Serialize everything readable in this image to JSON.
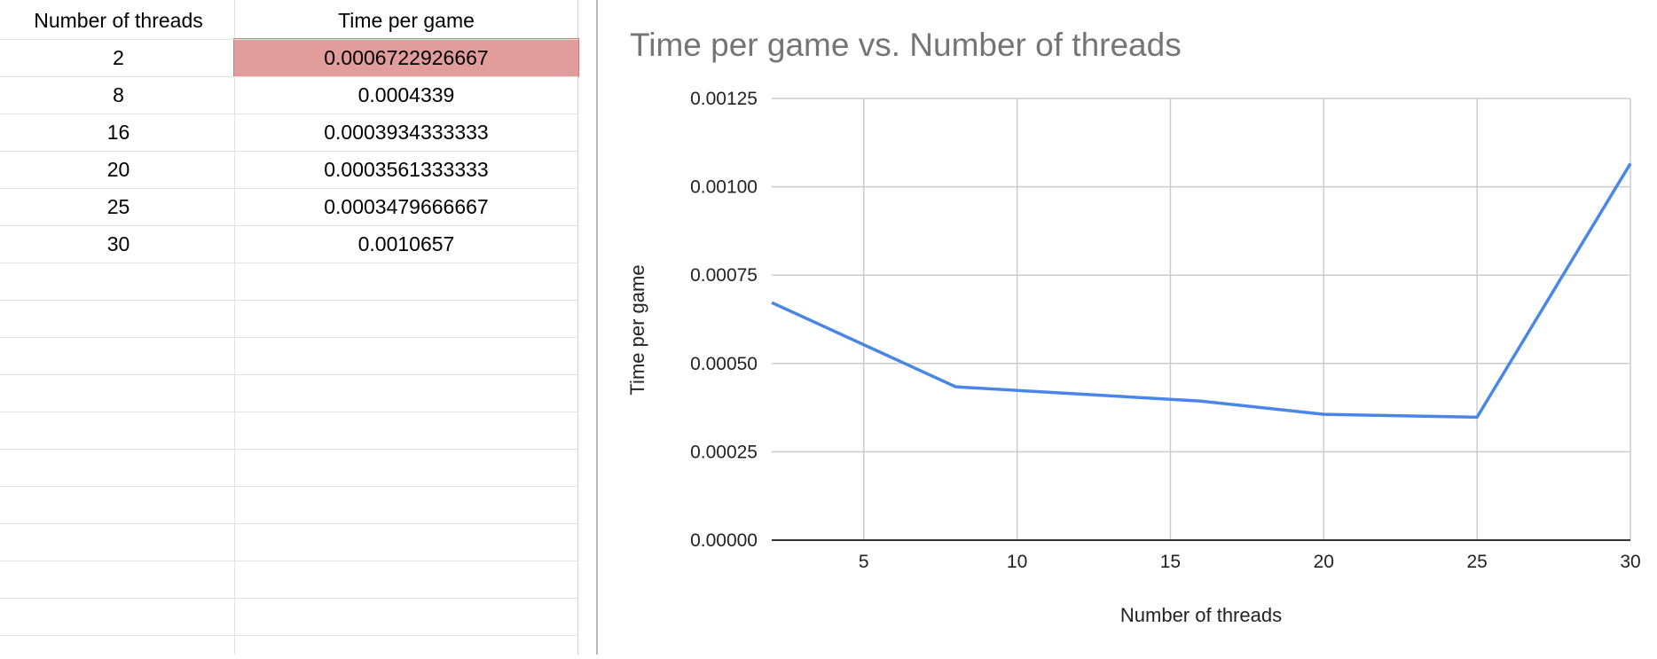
{
  "sheet": {
    "headers": [
      "Number of threads",
      "Time per game"
    ],
    "rows": [
      {
        "threads": "2",
        "time": "0.0006722926667"
      },
      {
        "threads": "8",
        "time": "0.0004339"
      },
      {
        "threads": "16",
        "time": "0.0003934333333"
      },
      {
        "threads": "20",
        "time": "0.0003561333333"
      },
      {
        "threads": "25",
        "time": "0.0003479666667"
      },
      {
        "threads": "30",
        "time": "0.0010657"
      }
    ],
    "selected_cell_color": "#e09d9b"
  },
  "chart_data": {
    "type": "line",
    "title": "Time per game vs. Number of threads",
    "xlabel": "Number of threads",
    "ylabel": "Time per game",
    "x": [
      2,
      8,
      16,
      20,
      25,
      30
    ],
    "series": [
      {
        "values": [
          0.0006722926667,
          0.0004339,
          0.0003934333333,
          0.0003561333333,
          0.0003479666667,
          0.0010657
        ],
        "color": "#4a86e8"
      }
    ],
    "xlim": [
      2,
      30
    ],
    "ylim": [
      0,
      0.00125
    ],
    "xticks": [
      "5",
      "10",
      "15",
      "20",
      "25",
      "30"
    ],
    "yticks": [
      "0.00000",
      "0.00025",
      "0.00050",
      "0.00075",
      "0.00100",
      "0.00125"
    ],
    "grid": true
  }
}
